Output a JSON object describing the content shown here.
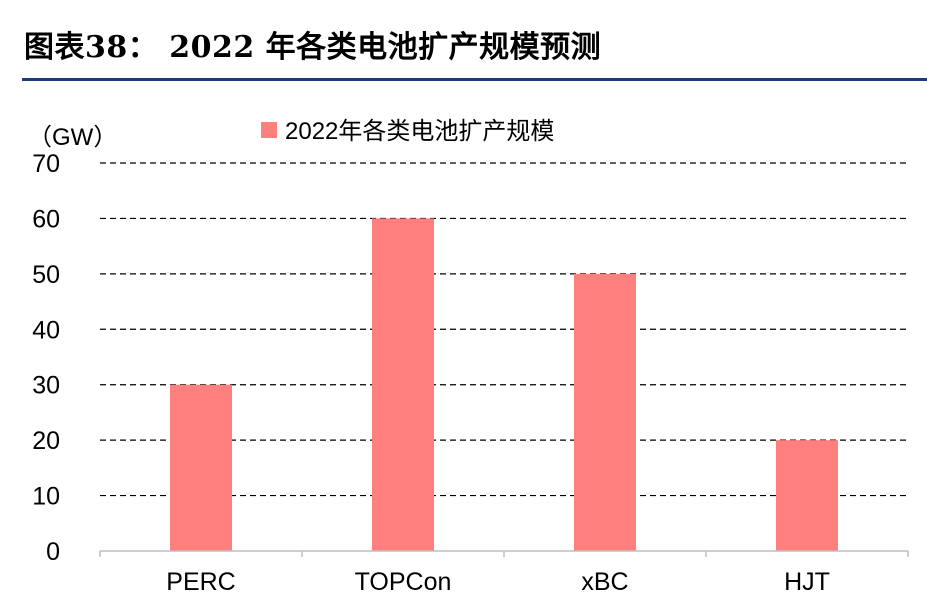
{
  "figure": {
    "title": "图表38：   2022 年各类电池扩产规模预测"
  },
  "colors": {
    "bar": "#ff7f7f",
    "gridline": "#000000",
    "axis": "#bfbfbf",
    "title_rule": "#1f3a7a"
  },
  "chart_data": {
    "type": "bar",
    "title": "",
    "unit_label": "（GW）",
    "categories": [
      "PERC",
      "TOPCon",
      "xBC",
      "HJT"
    ],
    "series": [
      {
        "name": "2022年各类电池扩产规模",
        "values": [
          30,
          60,
          50,
          20
        ]
      }
    ],
    "ylim": [
      0,
      70
    ],
    "yticks": [
      0,
      10,
      20,
      30,
      40,
      50,
      60,
      70
    ],
    "xlabel": "",
    "ylabel": "",
    "grid": true,
    "grid_style": "dashed",
    "legend_position": "top-center"
  }
}
